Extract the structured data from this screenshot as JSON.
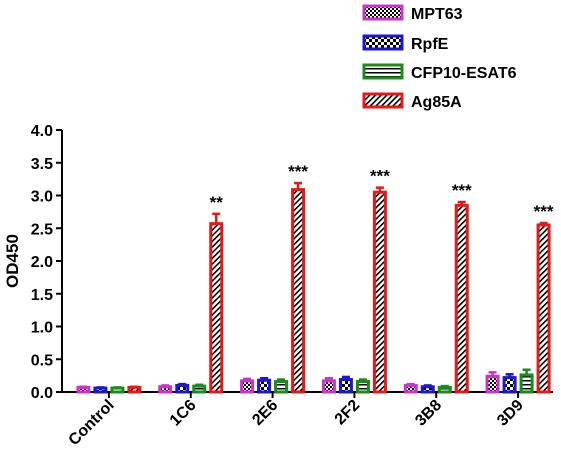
{
  "chart_data": {
    "type": "bar",
    "title": "",
    "xlabel": "",
    "ylabel": "OD450",
    "ylim": [
      0,
      4
    ],
    "yticks": [
      "0.0",
      "0.5",
      "1.0",
      "1.5",
      "2.0",
      "2.5",
      "3.0",
      "3.5",
      "4.0"
    ],
    "categories": [
      "Control",
      "1C6",
      "2E6",
      "2F2",
      "3B8",
      "3D9"
    ],
    "series": [
      {
        "name": "MPT63",
        "color": "#cc33cc",
        "pattern": "checker",
        "values": [
          0.07,
          0.08,
          0.17,
          0.17,
          0.1,
          0.24
        ],
        "errors": [
          0.01,
          0.02,
          0.03,
          0.04,
          0.02,
          0.06
        ]
      },
      {
        "name": "RpfE",
        "color": "#1a1acc",
        "pattern": "checker-large",
        "values": [
          0.06,
          0.1,
          0.18,
          0.19,
          0.08,
          0.22
        ],
        "errors": [
          0.01,
          0.02,
          0.03,
          0.04,
          0.02,
          0.05
        ]
      },
      {
        "name": "CFP10-ESAT6",
        "color": "#1a8c1a",
        "pattern": "hlines",
        "values": [
          0.06,
          0.09,
          0.16,
          0.16,
          0.07,
          0.26
        ],
        "errors": [
          0.01,
          0.02,
          0.03,
          0.03,
          0.02,
          0.08
        ]
      },
      {
        "name": "Ag85A",
        "color": "#e61919",
        "pattern": "diagonal",
        "values": [
          0.07,
          2.57,
          3.09,
          3.05,
          2.85,
          2.55
        ],
        "errors": [
          0.01,
          0.15,
          0.1,
          0.07,
          0.05,
          0.03
        ]
      }
    ],
    "annotations": [
      "",
      "**",
      "***",
      "***",
      "***",
      "***"
    ],
    "legend_position": "top-right",
    "grid": false
  }
}
